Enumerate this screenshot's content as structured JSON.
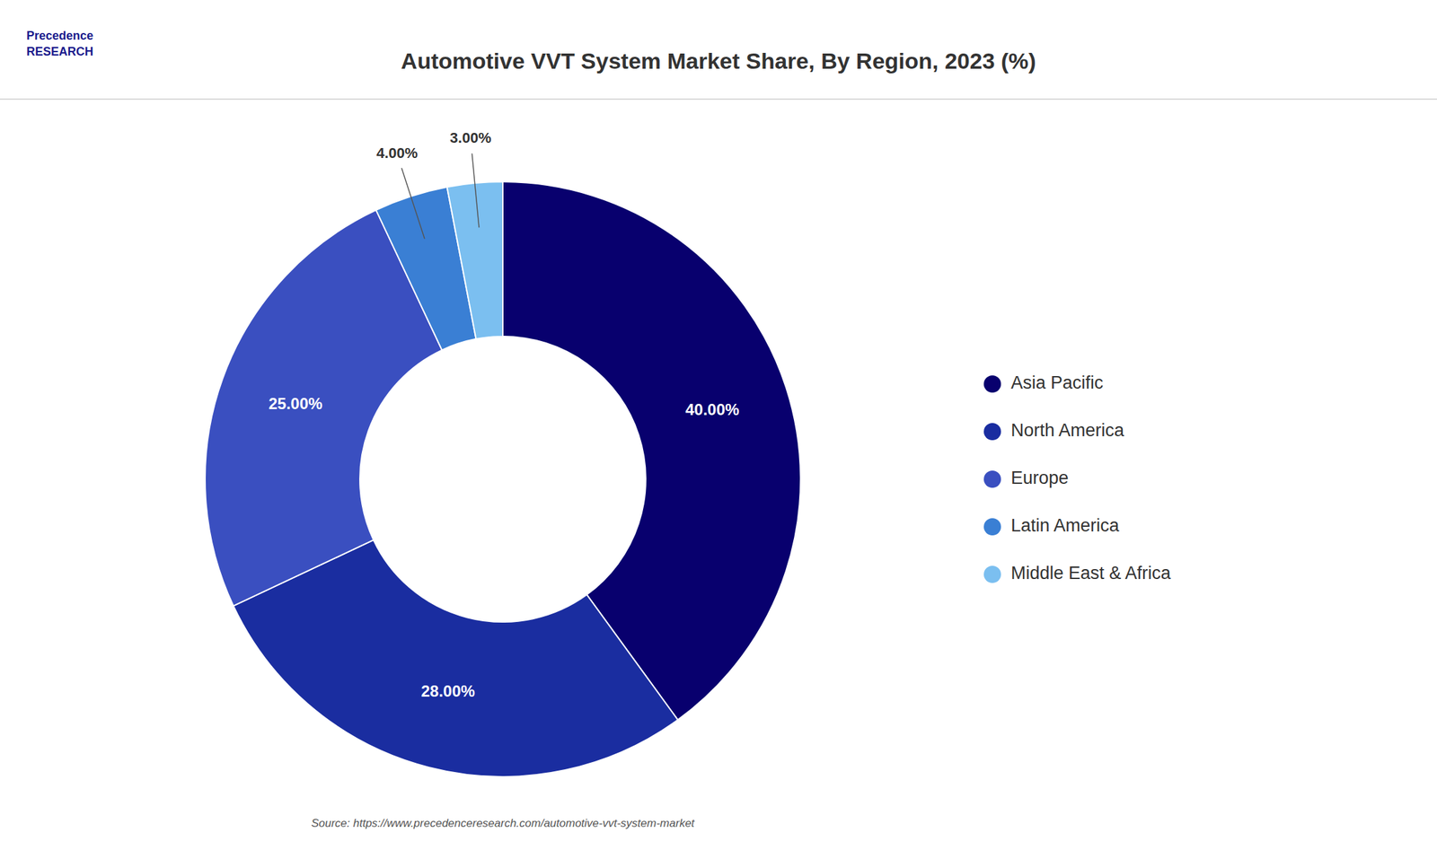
{
  "chart_data": {
    "type": "donut",
    "title": "Automotive VVT System Market Share, By Region, 2023 (%)",
    "categories": [
      "Asia Pacific",
      "North America",
      "Europe",
      "Latin America",
      "Middle East & Africa"
    ],
    "values": [
      40,
      28,
      25,
      4,
      3
    ],
    "value_labels": [
      "40.00%",
      "28.00%",
      "25.00%",
      "4.00%",
      "3.00%"
    ],
    "colors": [
      "#08006e",
      "#1a2da0",
      "#3a4fc0",
      "#3a7fd4",
      "#7bbff0"
    ],
    "data_labels": true,
    "legend": "right",
    "annotations": [
      "Source: https://www.precedenceresearch.com/automotive-vvt-system-market",
      "Precedence\nRESEARCH"
    ]
  }
}
